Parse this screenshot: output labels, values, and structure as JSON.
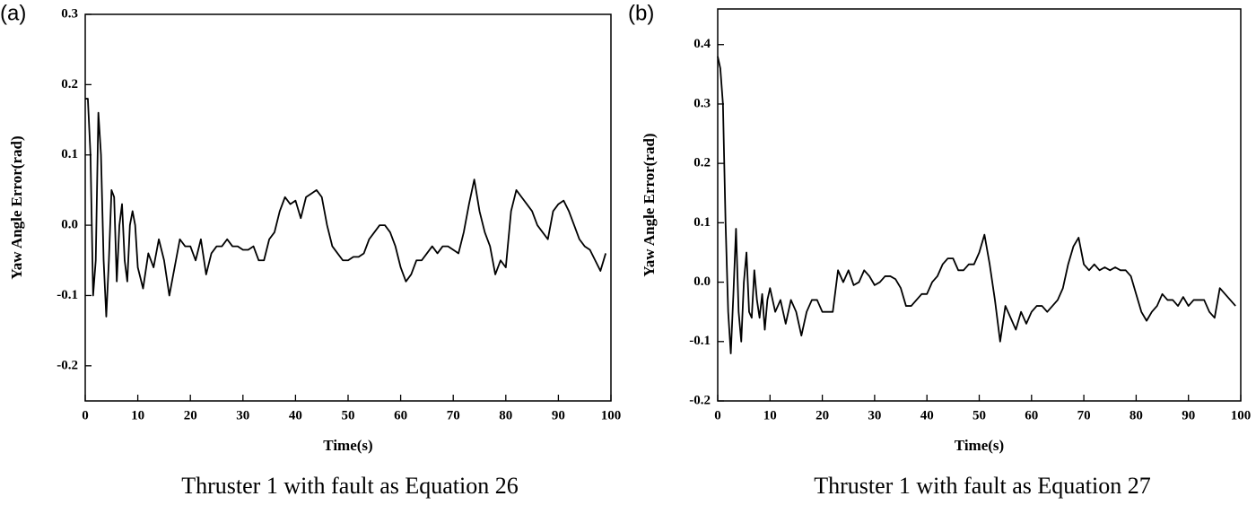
{
  "chart_data": [
    {
      "type": "line",
      "panel_label": "(a)",
      "caption": "Thruster 1 with fault as Equation 26",
      "x_label": "Time(s)",
      "y_label": "Yaw Angle Error(rad)",
      "color": "#000000",
      "xlim": [
        0,
        100
      ],
      "xticks": [
        0,
        10,
        20,
        30,
        40,
        50,
        60,
        70,
        80,
        90,
        100
      ],
      "ylim": [
        -0.25,
        0.3
      ],
      "yticks": [
        0.3,
        0.2,
        0.1,
        {
          "value": 0,
          "label": "0.0"
        },
        -0.1,
        -0.2
      ],
      "x": [
        0,
        0.5,
        1,
        1.5,
        2,
        2.5,
        3,
        3.5,
        4,
        4.5,
        5,
        5.5,
        6,
        6.5,
        7,
        7.5,
        8,
        8.5,
        9,
        9.5,
        10,
        11,
        12,
        13,
        14,
        15,
        16,
        17,
        18,
        19,
        20,
        21,
        22,
        23,
        24,
        25,
        26,
        27,
        28,
        29,
        30,
        31,
        32,
        33,
        34,
        35,
        36,
        37,
        38,
        39,
        40,
        41,
        42,
        43,
        44,
        45,
        46,
        47,
        48,
        49,
        50,
        51,
        52,
        53,
        54,
        55,
        56,
        57,
        58,
        59,
        60,
        61,
        62,
        63,
        64,
        65,
        66,
        67,
        68,
        69,
        70,
        71,
        72,
        73,
        74,
        75,
        76,
        77,
        78,
        79,
        80,
        81,
        82,
        83,
        84,
        85,
        86,
        87,
        88,
        89,
        90,
        91,
        92,
        93,
        94,
        95,
        96,
        97,
        98,
        99
      ],
      "values": [
        0.18,
        0.18,
        0.1,
        -0.1,
        -0.05,
        0.16,
        0.1,
        -0.05,
        -0.13,
        -0.05,
        0.05,
        0.04,
        -0.08,
        0,
        0.03,
        -0.05,
        -0.08,
        0,
        0.02,
        0,
        -0.06,
        -0.09,
        -0.04,
        -0.06,
        -0.02,
        -0.05,
        -0.1,
        -0.06,
        -0.02,
        -0.03,
        -0.03,
        -0.05,
        -0.02,
        -0.07,
        -0.04,
        -0.03,
        -0.03,
        -0.02,
        -0.03,
        -0.03,
        -0.035,
        -0.035,
        -0.03,
        -0.05,
        -0.05,
        -0.02,
        -0.01,
        0.02,
        0.04,
        0.03,
        0.035,
        0.01,
        0.04,
        0.045,
        0.05,
        0.04,
        0,
        -0.03,
        -0.04,
        -0.05,
        -0.05,
        -0.045,
        -0.045,
        -0.04,
        -0.02,
        -0.01,
        0,
        0,
        -0.01,
        -0.03,
        -0.06,
        -0.08,
        -0.07,
        -0.05,
        -0.05,
        -0.04,
        -0.03,
        -0.04,
        -0.03,
        -0.03,
        -0.035,
        -0.04,
        -0.01,
        0.03,
        0.065,
        0.02,
        -0.01,
        -0.03,
        -0.07,
        -0.05,
        -0.06,
        0.02,
        0.05,
        0.04,
        0.03,
        0.02,
        0,
        -0.01,
        -0.02,
        0.02,
        0.03,
        0.035,
        0.02,
        0,
        -0.02,
        -0.03,
        -0.035,
        -0.05,
        -0.065,
        -0.04
      ]
    },
    {
      "type": "line",
      "panel_label": "(b)",
      "caption": "Thruster 1 with fault as Equation 27",
      "x_label": "Time(s)",
      "y_label": "Yaw Angle Error(rad)",
      "color": "#000000",
      "xlim": [
        0,
        100
      ],
      "xticks": [
        0,
        10,
        20,
        30,
        40,
        50,
        60,
        70,
        80,
        90,
        100
      ],
      "ylim": [
        -0.2,
        0.46
      ],
      "yticks": [
        0.4,
        0.3,
        0.2,
        0.1,
        {
          "value": 0,
          "label": "0.0"
        },
        -0.1,
        -0.2
      ],
      "x": [
        0,
        0.5,
        1,
        1.5,
        2,
        2.5,
        3,
        3.5,
        4,
        4.5,
        5,
        5.5,
        6,
        6.5,
        7,
        7.5,
        8,
        8.5,
        9,
        9.5,
        10,
        11,
        12,
        13,
        14,
        15,
        16,
        17,
        18,
        19,
        20,
        21,
        22,
        23,
        24,
        25,
        26,
        27,
        28,
        29,
        30,
        31,
        32,
        33,
        34,
        35,
        36,
        37,
        38,
        39,
        40,
        41,
        42,
        43,
        44,
        45,
        46,
        47,
        48,
        49,
        50,
        51,
        52,
        53,
        54,
        55,
        56,
        57,
        58,
        59,
        60,
        61,
        62,
        63,
        64,
        65,
        66,
        67,
        68,
        69,
        70,
        71,
        72,
        73,
        74,
        75,
        76,
        77,
        78,
        79,
        80,
        81,
        82,
        83,
        84,
        85,
        86,
        87,
        88,
        89,
        90,
        91,
        92,
        93,
        94,
        95,
        96,
        97,
        98,
        99
      ],
      "values": [
        0.38,
        0.36,
        0.3,
        0.1,
        -0.05,
        -0.12,
        -0.02,
        0.09,
        -0.05,
        -0.1,
        0,
        0.05,
        -0.05,
        -0.06,
        0.02,
        -0.03,
        -0.06,
        -0.02,
        -0.08,
        -0.03,
        -0.01,
        -0.05,
        -0.03,
        -0.07,
        -0.03,
        -0.05,
        -0.09,
        -0.05,
        -0.03,
        -0.03,
        -0.05,
        -0.05,
        -0.05,
        0.02,
        0,
        0.02,
        -0.005,
        0,
        0.02,
        0.01,
        -0.005,
        0,
        0.01,
        0.01,
        0.005,
        -0.01,
        -0.04,
        -0.04,
        -0.03,
        -0.02,
        -0.02,
        0,
        0.01,
        0.03,
        0.04,
        0.04,
        0.02,
        0.02,
        0.03,
        0.03,
        0.05,
        0.08,
        0.03,
        -0.03,
        -0.1,
        -0.04,
        -0.06,
        -0.08,
        -0.05,
        -0.07,
        -0.05,
        -0.04,
        -0.04,
        -0.05,
        -0.04,
        -0.03,
        -0.01,
        0.03,
        0.06,
        0.075,
        0.03,
        0.02,
        0.03,
        0.02,
        0.025,
        0.02,
        0.025,
        0.02,
        0.02,
        0.01,
        -0.02,
        -0.05,
        -0.065,
        -0.05,
        -0.04,
        -0.02,
        -0.03,
        -0.03,
        -0.04,
        -0.025,
        -0.04,
        -0.03,
        -0.03,
        -0.03,
        -0.05,
        -0.06,
        -0.01,
        -0.02,
        -0.03,
        -0.04
      ]
    }
  ]
}
